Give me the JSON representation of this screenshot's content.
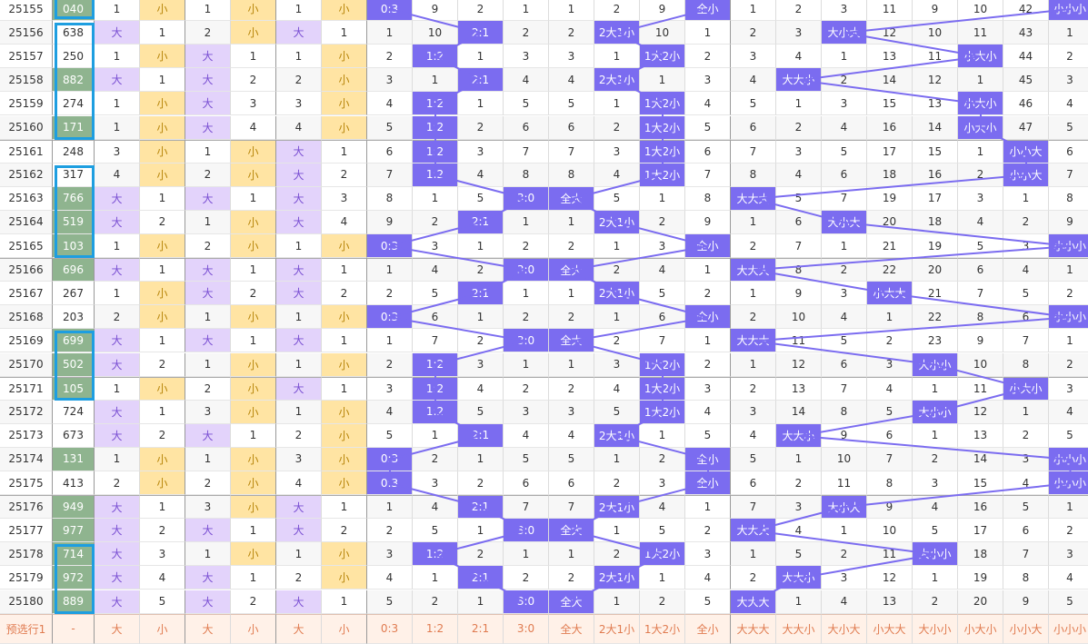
{
  "colors": {
    "big": "#e3d3fb",
    "small": "#ffe4a3",
    "hit": "#7b6cf0",
    "green": "#8fb48f",
    "box": "#1e9ee0",
    "pred_bg": "#fff1e8",
    "pred_text": "#e07b50",
    "line": "#7b6cf0"
  },
  "prediction_row": [
    "预选行1",
    "-",
    "大",
    "小",
    "大",
    "小",
    "大",
    "小",
    "0:3",
    "1:2",
    "2:1",
    "3:0",
    "全大",
    "2大1小",
    "1大2小",
    "全小",
    "大大大",
    "大大小",
    "大小大",
    "小大大",
    "大小小",
    "小大小",
    "小小大",
    "小小小"
  ],
  "rows": [
    [
      "25155",
      "040",
      "1",
      "小",
      "1",
      "小",
      "1",
      "小",
      "0:3",
      "9",
      "2",
      "1",
      "1",
      "2",
      "9",
      "全小",
      "1",
      "2",
      "3",
      "11",
      "9",
      "10",
      "42",
      "小小小"
    ],
    [
      "25156",
      "638",
      "大",
      "1",
      "2",
      "小",
      "大",
      "1",
      "1",
      "10",
      "2:1",
      "2",
      "2",
      "2大1小",
      "10",
      "1",
      "2",
      "3",
      "大小大",
      "12",
      "10",
      "11",
      "43",
      "1"
    ],
    [
      "25157",
      "250",
      "1",
      "小",
      "大",
      "1",
      "1",
      "小",
      "2",
      "1:2",
      "1",
      "3",
      "3",
      "1",
      "1大2小",
      "2",
      "3",
      "4",
      "1",
      "13",
      "11",
      "小大小",
      "44",
      "2"
    ],
    [
      "25158",
      "882",
      "大",
      "1",
      "大",
      "2",
      "2",
      "小",
      "3",
      "1",
      "2:1",
      "4",
      "4",
      "2大1小",
      "1",
      "3",
      "4",
      "大大小",
      "2",
      "14",
      "12",
      "1",
      "45",
      "3"
    ],
    [
      "25159",
      "274",
      "1",
      "小",
      "大",
      "3",
      "3",
      "小",
      "4",
      "1:2",
      "1",
      "5",
      "5",
      "1",
      "1大2小",
      "4",
      "5",
      "1",
      "3",
      "15",
      "13",
      "小大小",
      "46",
      "4"
    ],
    [
      "25160",
      "171",
      "1",
      "小",
      "大",
      "4",
      "4",
      "小",
      "5",
      "1:2",
      "2",
      "6",
      "6",
      "2",
      "1大2小",
      "5",
      "6",
      "2",
      "4",
      "16",
      "14",
      "小大小",
      "47",
      "5"
    ],
    [
      "25161",
      "248",
      "3",
      "小",
      "1",
      "小",
      "大",
      "1",
      "6",
      "1:2",
      "3",
      "7",
      "7",
      "3",
      "1大2小",
      "6",
      "7",
      "3",
      "5",
      "17",
      "15",
      "1",
      "小小大",
      "6"
    ],
    [
      "25162",
      "317",
      "4",
      "小",
      "2",
      "小",
      "大",
      "2",
      "7",
      "1:2",
      "4",
      "8",
      "8",
      "4",
      "1大2小",
      "7",
      "8",
      "4",
      "6",
      "18",
      "16",
      "2",
      "小小大",
      "7"
    ],
    [
      "25163",
      "766",
      "大",
      "1",
      "大",
      "1",
      "大",
      "3",
      "8",
      "1",
      "5",
      "3:0",
      "全大",
      "5",
      "1",
      "8",
      "大大大",
      "5",
      "7",
      "19",
      "17",
      "3",
      "1",
      "8"
    ],
    [
      "25164",
      "519",
      "大",
      "2",
      "1",
      "小",
      "大",
      "4",
      "9",
      "2",
      "2:1",
      "1",
      "1",
      "2大1小",
      "2",
      "9",
      "1",
      "6",
      "大小大",
      "20",
      "18",
      "4",
      "2",
      "9"
    ],
    [
      "25165",
      "103",
      "1",
      "小",
      "2",
      "小",
      "1",
      "小",
      "0:3",
      "3",
      "1",
      "2",
      "2",
      "1",
      "3",
      "全小",
      "2",
      "7",
      "1",
      "21",
      "19",
      "5",
      "3",
      "小小小"
    ],
    [
      "25166",
      "696",
      "大",
      "1",
      "大",
      "1",
      "大",
      "1",
      "1",
      "4",
      "2",
      "3:0",
      "全大",
      "2",
      "4",
      "1",
      "大大大",
      "8",
      "2",
      "22",
      "20",
      "6",
      "4",
      "1"
    ],
    [
      "25167",
      "267",
      "1",
      "小",
      "大",
      "2",
      "大",
      "2",
      "2",
      "5",
      "2:1",
      "1",
      "1",
      "2大1小",
      "5",
      "2",
      "1",
      "9",
      "3",
      "小大大",
      "21",
      "7",
      "5",
      "2"
    ],
    [
      "25168",
      "203",
      "2",
      "小",
      "1",
      "小",
      "1",
      "小",
      "0:3",
      "6",
      "1",
      "2",
      "2",
      "1",
      "6",
      "全小",
      "2",
      "10",
      "4",
      "1",
      "22",
      "8",
      "6",
      "小小小"
    ],
    [
      "25169",
      "699",
      "大",
      "1",
      "大",
      "1",
      "大",
      "1",
      "1",
      "7",
      "2",
      "3:0",
      "全大",
      "2",
      "7",
      "1",
      "大大大",
      "11",
      "5",
      "2",
      "23",
      "9",
      "7",
      "1"
    ],
    [
      "25170",
      "502",
      "大",
      "2",
      "1",
      "小",
      "1",
      "小",
      "2",
      "1:2",
      "3",
      "1",
      "1",
      "3",
      "1大2小",
      "2",
      "1",
      "12",
      "6",
      "3",
      "大小小",
      "10",
      "8",
      "2"
    ],
    [
      "25171",
      "105",
      "1",
      "小",
      "2",
      "小",
      "大",
      "1",
      "3",
      "1:2",
      "4",
      "2",
      "2",
      "4",
      "1大2小",
      "3",
      "2",
      "13",
      "7",
      "4",
      "1",
      "11",
      "小大小",
      "3"
    ],
    [
      "25172",
      "724",
      "大",
      "1",
      "3",
      "小",
      "1",
      "小",
      "4",
      "1:2",
      "5",
      "3",
      "3",
      "5",
      "1大2小",
      "4",
      "3",
      "14",
      "8",
      "5",
      "大小小",
      "12",
      "1",
      "4"
    ],
    [
      "25173",
      "673",
      "大",
      "2",
      "大",
      "1",
      "2",
      "小",
      "5",
      "1",
      "2:1",
      "4",
      "4",
      "2大1小",
      "1",
      "5",
      "4",
      "大大小",
      "9",
      "6",
      "1",
      "13",
      "2",
      "5"
    ],
    [
      "25174",
      "131",
      "1",
      "小",
      "1",
      "小",
      "3",
      "小",
      "0:3",
      "2",
      "1",
      "5",
      "5",
      "1",
      "2",
      "全小",
      "5",
      "1",
      "10",
      "7",
      "2",
      "14",
      "3",
      "小小小"
    ],
    [
      "25175",
      "413",
      "2",
      "小",
      "2",
      "小",
      "4",
      "小",
      "0:3",
      "3",
      "2",
      "6",
      "6",
      "2",
      "3",
      "全小",
      "6",
      "2",
      "11",
      "8",
      "3",
      "15",
      "4",
      "小小小"
    ],
    [
      "25176",
      "949",
      "大",
      "1",
      "3",
      "小",
      "大",
      "1",
      "1",
      "4",
      "2:1",
      "7",
      "7",
      "2大1小",
      "4",
      "1",
      "7",
      "3",
      "大小大",
      "9",
      "4",
      "16",
      "5",
      "1"
    ],
    [
      "25177",
      "977",
      "大",
      "2",
      "大",
      "1",
      "大",
      "2",
      "2",
      "5",
      "1",
      "3:0",
      "全大",
      "1",
      "5",
      "2",
      "大大大",
      "4",
      "1",
      "10",
      "5",
      "17",
      "6",
      "2"
    ],
    [
      "25178",
      "714",
      "大",
      "3",
      "1",
      "小",
      "1",
      "小",
      "3",
      "1:2",
      "2",
      "1",
      "1",
      "2",
      "1大2小",
      "3",
      "1",
      "5",
      "2",
      "11",
      "大小小",
      "18",
      "7",
      "3"
    ],
    [
      "25179",
      "972",
      "大",
      "4",
      "大",
      "1",
      "2",
      "小",
      "4",
      "1",
      "2:1",
      "2",
      "2",
      "2大1小",
      "1",
      "4",
      "2",
      "大大小",
      "3",
      "12",
      "1",
      "19",
      "8",
      "4"
    ],
    [
      "25180",
      "889",
      "大",
      "5",
      "大",
      "2",
      "大",
      "1",
      "5",
      "2",
      "1",
      "3:0",
      "全大",
      "1",
      "2",
      "5",
      "大大大",
      "1",
      "4",
      "13",
      "2",
      "20",
      "9",
      "5"
    ]
  ],
  "green_numbers": [
    "040",
    "882",
    "171",
    "766",
    "519",
    "103",
    "696",
    "699",
    "502",
    "105",
    "131",
    "949",
    "977",
    "714",
    "972",
    "889"
  ]
}
